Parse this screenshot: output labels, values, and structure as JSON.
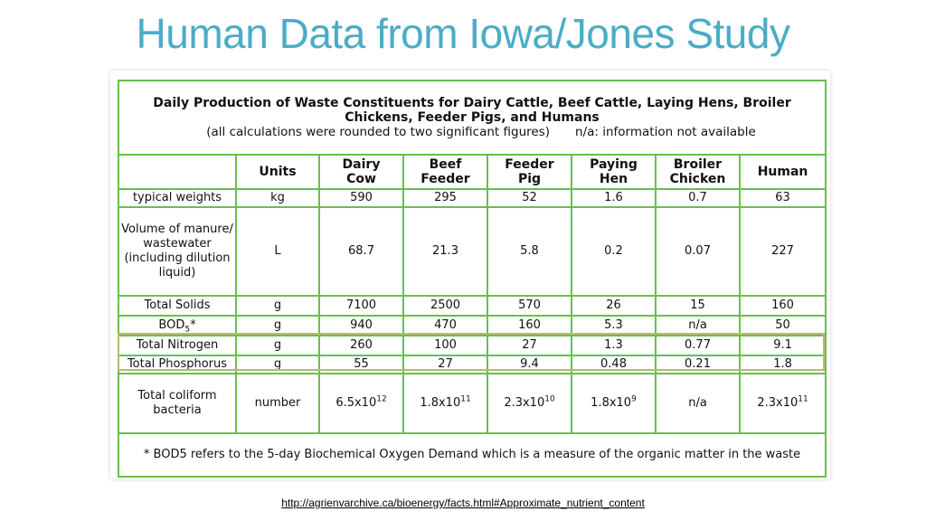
{
  "slide_title": "Human Data from Iowa/Jones Study",
  "caption": {
    "title": "Daily Production of Waste Constituents for Dairy Cattle, Beef Cattle, Laying Hens, Broiler Chickens, Feeder Pigs, and Humans",
    "rounding_note": "(all calculations were rounded to two significant figures)",
    "na_note": "n/a: information not available"
  },
  "columns": {
    "units": "Units",
    "dairy_l1": "Dairy",
    "dairy_l2": "Cow",
    "beef_l1": "Beef",
    "beef_l2": "Feeder",
    "pig_l1": "Feeder",
    "pig_l2": "Pig",
    "hen_l1": "Paying",
    "hen_l2": "Hen",
    "broiler_l1": "Broiler",
    "broiler_l2": "Chicken",
    "human": "Human"
  },
  "rows": {
    "weights": {
      "label": "typical weights",
      "unit": "kg",
      "values": [
        "590",
        "295",
        "52",
        "1.6",
        "0.7",
        "63"
      ]
    },
    "volume": {
      "label_1": "Volume of manure/",
      "label_2": "wastewater",
      "label_3": "(including dilution",
      "label_4": "liquid)",
      "unit": "L",
      "values": [
        "68.7",
        "21.3",
        "5.8",
        "0.2",
        "0.07",
        "227"
      ]
    },
    "solids": {
      "label": "Total Solids",
      "unit": "g",
      "values": [
        "7100",
        "2500",
        "570",
        "26",
        "15",
        "160"
      ]
    },
    "bod": {
      "label": "BOD",
      "label_sub": "5",
      "label_suffix": "*",
      "unit": "g",
      "values": [
        "940",
        "470",
        "160",
        "5.3",
        "n/a",
        "50"
      ]
    },
    "nitrogen": {
      "label": "Total Nitrogen",
      "unit": "g",
      "values": [
        "260",
        "100",
        "27",
        "1.3",
        "0.77",
        "9.1"
      ]
    },
    "phosphorus": {
      "label": "Total Phosphorus",
      "unit": "g",
      "values": [
        "55",
        "27",
        "9.4",
        "0.48",
        "0.21",
        "1.8"
      ]
    },
    "coliform": {
      "label_1": "Total coliform",
      "label_2": "bacteria",
      "unit": "number",
      "values": [
        {
          "base": "6.5x10",
          "exp": "12"
        },
        {
          "base": "1.8x10",
          "exp": "11"
        },
        {
          "base": "2.3x10",
          "exp": "10"
        },
        {
          "base": "1.8x10",
          "exp": "9"
        },
        {
          "base": "n/a",
          "exp": ""
        },
        {
          "base": "2.3x10",
          "exp": "11"
        }
      ]
    }
  },
  "footnote": "* BOD5 refers to the 5-day Biochemical Oxygen Demand which is a measure of the organic matter in the waste",
  "source_url": "http://agrienvarchive.ca/bioenergy/facts.html#Approximate_nutrient_content",
  "colors": {
    "title": "#4bacc6",
    "table_border": "#6abf4b",
    "highlight_border": "#b8b87a"
  }
}
